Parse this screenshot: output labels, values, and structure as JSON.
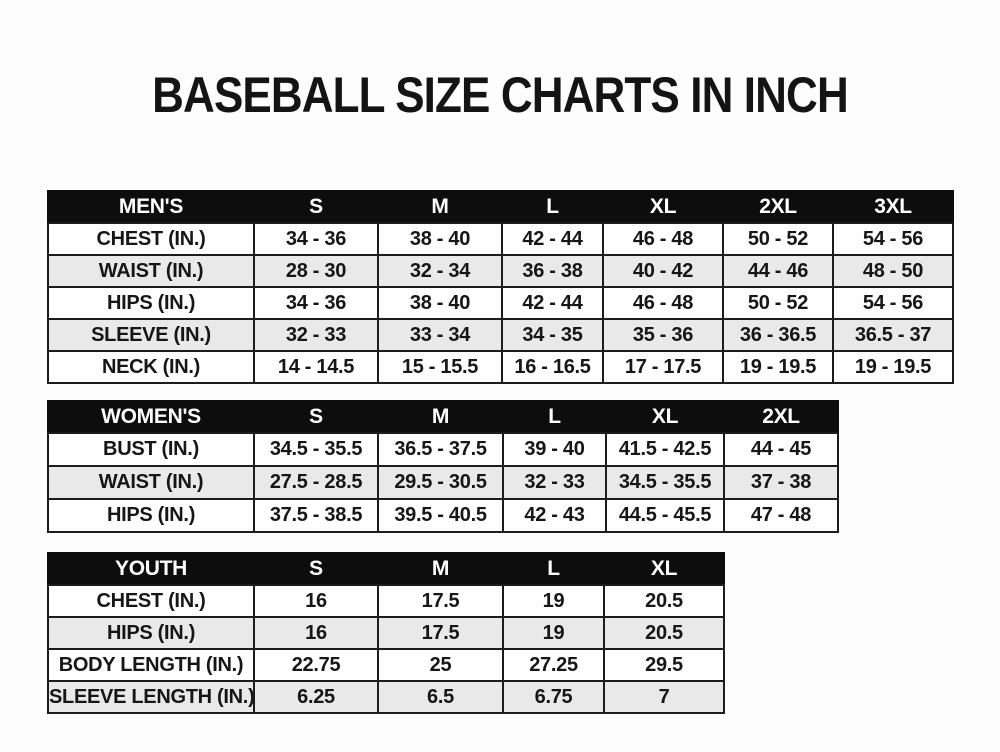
{
  "page": {
    "title": "BASEBALL SIZE CHARTS IN INCH",
    "background": "#fdfdfd",
    "colors": {
      "header_bg": "#0d0d0d",
      "header_text": "#ffffff",
      "row_stripe_bg": "#e9e9e9",
      "row_bg": "#fefefe",
      "border": "#1c1c1c",
      "text": "#161616"
    }
  },
  "tables": [
    {
      "id": "mens",
      "name": "mens-size-table",
      "header": [
        "MEN'S",
        "S",
        "M",
        "L",
        "XL",
        "2XL",
        "3XL"
      ],
      "rows": [
        [
          "CHEST (IN.)",
          "34 - 36",
          "38 - 40",
          "42 - 44",
          "46 - 48",
          "50 - 52",
          "54 - 56"
        ],
        [
          "WAIST (IN.)",
          "28 - 30",
          "32 - 34",
          "36 - 38",
          "40 - 42",
          "44 - 46",
          "48 - 50"
        ],
        [
          "HIPS (IN.)",
          "34 - 36",
          "38 - 40",
          "42 - 44",
          "46 - 48",
          "50 - 52",
          "54 - 56"
        ],
        [
          "SLEEVE (IN.)",
          "32 - 33",
          "33 - 34",
          "34 - 35",
          "35 - 36",
          "36 - 36.5",
          "36.5 - 37"
        ],
        [
          "NECK (IN.)",
          "14 - 14.5",
          "15 - 15.5",
          "16 - 16.5",
          "17 - 17.5",
          "19 - 19.5",
          "19 - 19.5"
        ]
      ]
    },
    {
      "id": "womens",
      "name": "womens-size-table",
      "header": [
        "WOMEN'S",
        "S",
        "M",
        "L",
        "XL",
        "2XL"
      ],
      "rows": [
        [
          "BUST (IN.)",
          "34.5 - 35.5",
          "36.5 - 37.5",
          "39 - 40",
          "41.5 - 42.5",
          "44 - 45"
        ],
        [
          "WAIST (IN.)",
          "27.5 - 28.5",
          "29.5 - 30.5",
          "32 - 33",
          "34.5 - 35.5",
          "37 - 38"
        ],
        [
          "HIPS (IN.)",
          "37.5 - 38.5",
          "39.5 - 40.5",
          "42 - 43",
          "44.5 - 45.5",
          "47 - 48"
        ]
      ]
    },
    {
      "id": "youth",
      "name": "youth-size-table",
      "header": [
        "YOUTH",
        "S",
        "M",
        "L",
        "XL"
      ],
      "rows": [
        [
          "CHEST (IN.)",
          "16",
          "17.5",
          "19",
          "20.5"
        ],
        [
          "HIPS (IN.)",
          "16",
          "17.5",
          "19",
          "20.5"
        ],
        [
          "BODY LENGTH (IN.)",
          "22.75",
          "25",
          "27.25",
          "29.5"
        ],
        [
          "SLEEVE LENGTH (IN.)",
          "6.25",
          "6.5",
          "6.75",
          "7"
        ]
      ]
    }
  ]
}
